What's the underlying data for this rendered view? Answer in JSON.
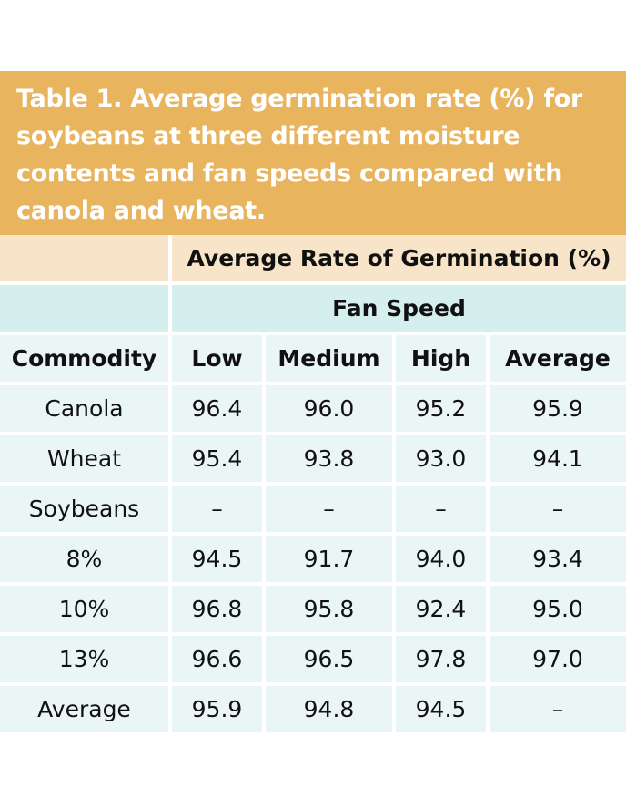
{
  "title": "Table 1. Average germination rate (%) for soybeans at three different moisture contents and fan speeds compared with canola and wheat.",
  "header": {
    "group": "Average Rate of Germination (%)",
    "subgroup": "Fan Speed",
    "columns": [
      "Commodity",
      "Low",
      "Medium",
      "High",
      "Average"
    ]
  },
  "rows": [
    [
      "Canola",
      "96.4",
      "96.0",
      "95.2",
      "95.9"
    ],
    [
      "Wheat",
      "95.4",
      "93.8",
      "93.0",
      "94.1"
    ],
    [
      "Soybeans",
      "–",
      "–",
      "–",
      "–"
    ],
    [
      "8%",
      "94.5",
      "91.7",
      "94.0",
      "93.4"
    ],
    [
      "10%",
      "96.8",
      "95.8",
      "92.4",
      "95.0"
    ],
    [
      "13%",
      "96.6",
      "96.5",
      "97.8",
      "97.0"
    ],
    [
      "Average",
      "95.9",
      "94.8",
      "94.5",
      "–"
    ]
  ]
}
